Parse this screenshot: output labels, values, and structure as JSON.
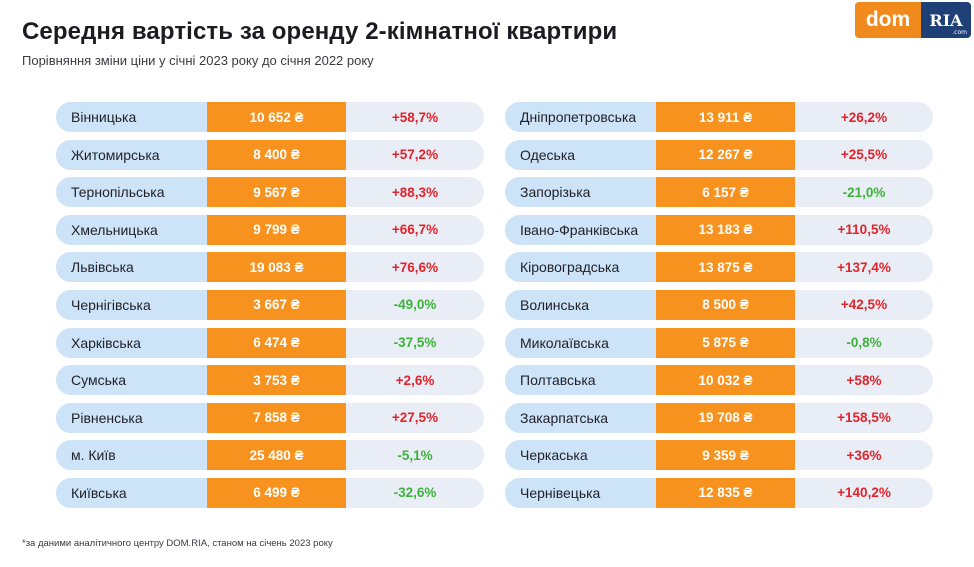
{
  "header": {
    "title": "Середня вартість за оренду 2-кімнатної квартири",
    "subtitle": "Порівняння зміни ціни у січні 2023 року до січня 2022 року"
  },
  "logo": {
    "dom": "dom",
    "ria": "RIA",
    "dotcom": ".com"
  },
  "colors": {
    "accent_orange": "#f7921e",
    "region_blue": "#cde3f7",
    "row_bg": "#e9eef6",
    "increase_red": "#e3232b",
    "decrease_green": "#3db23a",
    "logo_blue": "#1f3f77"
  },
  "table": {
    "left": [
      {
        "region": "Вінницька",
        "price": "10 652 ₴",
        "change": "+58,7%",
        "direction": "up"
      },
      {
        "region": "Житомирська",
        "price": "8 400 ₴",
        "change": "+57,2%",
        "direction": "up"
      },
      {
        "region": "Тернопільська",
        "price": "9 567 ₴",
        "change": "+88,3%",
        "direction": "up"
      },
      {
        "region": "Хмельницька",
        "price": "9 799 ₴",
        "change": "+66,7%",
        "direction": "up"
      },
      {
        "region": "Львівська",
        "price": "19 083 ₴",
        "change": "+76,6%",
        "direction": "up"
      },
      {
        "region": "Чернігівська",
        "price": "3 667 ₴",
        "change": "-49,0%",
        "direction": "down"
      },
      {
        "region": "Харківська",
        "price": "6 474 ₴",
        "change": "-37,5%",
        "direction": "down"
      },
      {
        "region": "Сумська",
        "price": "3 753 ₴",
        "change": "+2,6%",
        "direction": "up"
      },
      {
        "region": "Рівненська",
        "price": "7 858 ₴",
        "change": "+27,5%",
        "direction": "up"
      },
      {
        "region": "м. Київ",
        "price": "25 480 ₴",
        "change": "-5,1%",
        "direction": "down"
      },
      {
        "region": "Київська",
        "price": "6 499 ₴",
        "change": "-32,6%",
        "direction": "down"
      }
    ],
    "right": [
      {
        "region": "Дніпропетровська",
        "price": "13 911 ₴",
        "change": "+26,2%",
        "direction": "up"
      },
      {
        "region": "Одеська",
        "price": "12 267 ₴",
        "change": "+25,5%",
        "direction": "up"
      },
      {
        "region": "Запорізька",
        "price": "6 157 ₴",
        "change": "-21,0%",
        "direction": "down"
      },
      {
        "region": "Івано-Франківська",
        "price": "13 183 ₴",
        "change": "+110,5%",
        "direction": "up"
      },
      {
        "region": "Кіровоградська",
        "price": "13 875 ₴",
        "change": "+137,4%",
        "direction": "up"
      },
      {
        "region": "Волинська",
        "price": "8 500 ₴",
        "change": "+42,5%",
        "direction": "up"
      },
      {
        "region": "Миколаївська",
        "price": "5 875 ₴",
        "change": "-0,8%",
        "direction": "down"
      },
      {
        "region": "Полтавська",
        "price": "10 032 ₴",
        "change": "+58%",
        "direction": "up"
      },
      {
        "region": "Закарпатська",
        "price": "19 708 ₴",
        "change": "+158,5%",
        "direction": "up"
      },
      {
        "region": "Черкаська",
        "price": "9 359 ₴",
        "change": "+36%",
        "direction": "up"
      },
      {
        "region": "Чернівецька",
        "price": "12 835 ₴",
        "change": "+140,2%",
        "direction": "up"
      }
    ]
  },
  "footnote": "*за даними аналітичного центру DOM.RIA, станом на січень 2023 року"
}
